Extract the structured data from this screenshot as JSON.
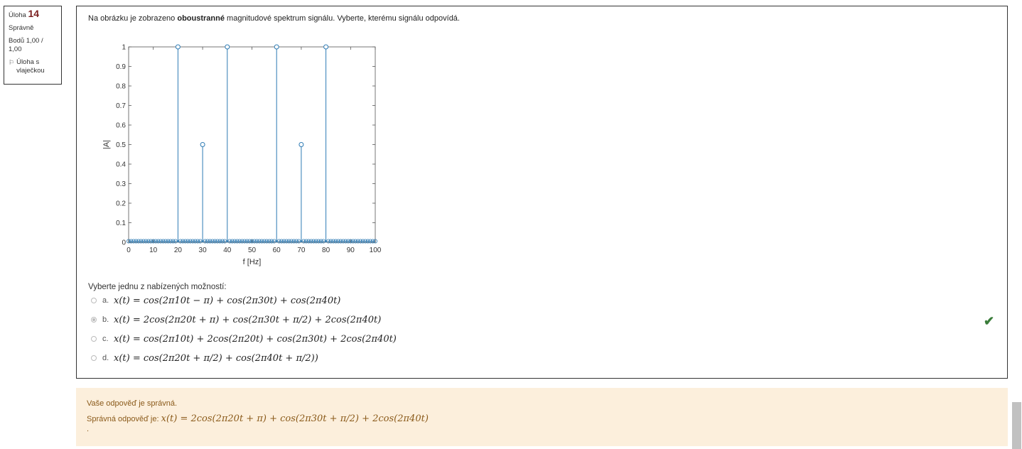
{
  "question_info": {
    "label": "Úloha",
    "number": "14",
    "state": "Správně",
    "grade": "Bodů 1,00 / 1,00",
    "flag_label": "Úloha s vlaječkou",
    "flag_icon": "flag-icon"
  },
  "question": {
    "text_before": "Na obrázku je zobrazeno ",
    "text_bold": "oboustranné",
    "text_after": " magnitudové spektrum signálu. Vyberte, kterému signálu odpovídá.",
    "prompt": "Vyberte jednu z nabízených možností:"
  },
  "chart_data": {
    "type": "stem",
    "xlabel": "f [Hz]",
    "ylabel": "|A|",
    "xlim": [
      0,
      100
    ],
    "ylim": [
      0,
      1
    ],
    "xticks": [
      "0",
      "10",
      "20",
      "30",
      "40",
      "50",
      "60",
      "70",
      "80",
      "90",
      "100"
    ],
    "yticks": [
      "0",
      "0.1",
      "0.2",
      "0.3",
      "0.4",
      "0.5",
      "0.6",
      "0.7",
      "0.8",
      "0.9",
      "1"
    ],
    "stems": [
      {
        "x": 20,
        "y": 1
      },
      {
        "x": 30,
        "y": 0.5
      },
      {
        "x": 40,
        "y": 1
      },
      {
        "x": 60,
        "y": 1
      },
      {
        "x": 70,
        "y": 0.5
      },
      {
        "x": 80,
        "y": 1
      }
    ],
    "baseline_step": 1,
    "color": "#2e7bb4",
    "grid": false
  },
  "options": [
    {
      "letter": "a.",
      "formula": "x(t) = cos(2π10t − π) + cos(2π30t) + cos(2π40t)",
      "selected": false
    },
    {
      "letter": "b.",
      "formula": "x(t) = 2cos(2π20t + π) + cos(2π30t + π/2) + 2cos(2π40t)",
      "selected": true
    },
    {
      "letter": "c.",
      "formula": "x(t) = cos(2π10t) + 2cos(2π20t) + cos(2π30t) + 2cos(2π40t)",
      "selected": false
    },
    {
      "letter": "d.",
      "formula": "x(t) = cos(2π20t + π/2) + cos(2π40t + π/2))",
      "selected": false
    }
  ],
  "correct_icon": "checkmark-icon",
  "feedback": {
    "line1": "Vaše odpověď je správná.",
    "line2_label": "Správná odpověď je: ",
    "line2_formula": "x(t) = 2cos(2π20t + π) + cos(2π30t + π/2) + 2cos(2π40t)",
    "line3": "."
  },
  "colors": {
    "stem": "#2e7bb4",
    "correct": "#3a7d3a",
    "feedback_bg": "#fcefdc",
    "feedback_text": "#8a5a1a",
    "question_number": "#7a1f1f"
  }
}
